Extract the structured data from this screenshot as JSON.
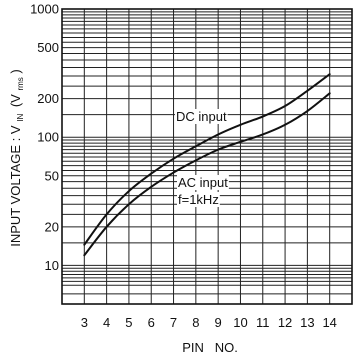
{
  "chart_data": {
    "type": "line",
    "xlabel": "PIN   NO.",
    "ylabel": "INPUT VOLTAGE : V",
    "ylabel_sub": "IN",
    "ylabel_unit_open": "(V",
    "ylabel_unit_sub": "rms",
    "ylabel_unit_close": ")",
    "x": [
      3,
      4,
      5,
      6,
      7,
      8,
      9,
      10,
      11,
      12,
      13,
      14
    ],
    "x_tick_labels": [
      "3",
      "4",
      "5",
      "6",
      "7",
      "8",
      "9",
      "10",
      "11",
      "12",
      "13",
      "14"
    ],
    "xlim": [
      2,
      15
    ],
    "y_scale": "log",
    "ylim": [
      5,
      1000
    ],
    "y_tick_labels": [
      {
        "value": 1000,
        "label": "1000"
      },
      {
        "value": 500,
        "label": "500"
      },
      {
        "value": 200,
        "label": "200"
      },
      {
        "value": 100,
        "label": "100"
      },
      {
        "value": 50,
        "label": "50"
      },
      {
        "value": 20,
        "label": "20"
      },
      {
        "value": 10,
        "label": "10"
      }
    ],
    "grid": true,
    "series": [
      {
        "name": "DC input",
        "values": [
          14.5,
          25,
          38,
          52,
          68,
          85,
          105,
          125,
          145,
          175,
          230,
          310
        ]
      },
      {
        "name": "AC input",
        "values": [
          12,
          20,
          30,
          41,
          53,
          66,
          80,
          92,
          105,
          125,
          160,
          220
        ]
      }
    ],
    "annotations": [
      {
        "text": "DC input",
        "series": 0
      },
      {
        "text": "AC input",
        "series": 1
      },
      {
        "text": "f=1kHz",
        "series": 1
      }
    ]
  }
}
